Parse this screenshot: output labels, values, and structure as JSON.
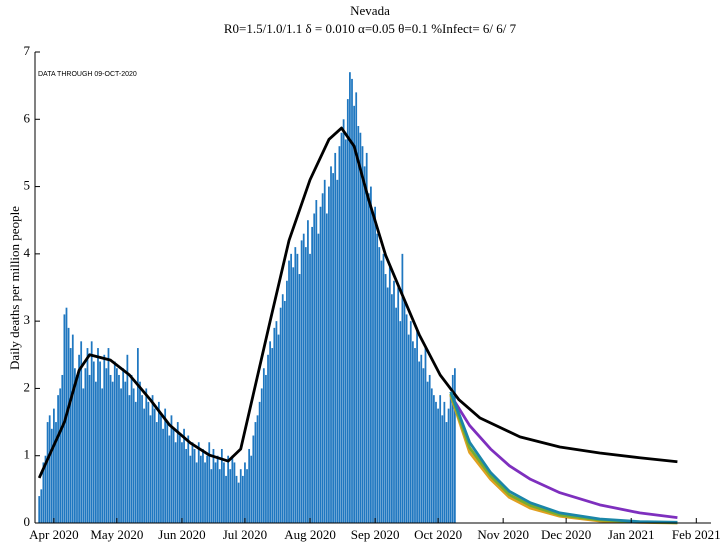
{
  "chart_data": {
    "type": "bar",
    "title": "Nevada",
    "subtitle": "R0=1.5/1.0/1.1  δ = 0.010  α=0.05  θ=0.1  %Infect= 6/ 6/ 7",
    "annotation": "DATA THROUGH 09-OCT-2020",
    "ylabel": "Daily deaths per million people",
    "color": "#1f77c0",
    "x": [
      -7,
      -6,
      -5,
      -4,
      -3,
      -2,
      -1,
      0,
      1,
      2,
      3,
      4,
      5,
      6,
      7,
      8,
      9,
      10,
      11,
      12,
      13,
      14,
      15,
      16,
      17,
      18,
      19,
      20,
      21,
      22,
      23,
      24,
      25,
      26,
      27,
      28,
      29,
      30,
      31,
      32,
      33,
      34,
      35,
      36,
      37,
      38,
      39,
      40,
      41,
      42,
      43,
      44,
      45,
      46,
      47,
      48,
      49,
      50,
      51,
      52,
      53,
      54,
      55,
      56,
      57,
      58,
      59,
      60,
      61,
      62,
      63,
      64,
      65,
      66,
      67,
      68,
      69,
      70,
      71,
      72,
      73,
      74,
      75,
      76,
      77,
      78,
      79,
      80,
      81,
      82,
      83,
      84,
      85,
      86,
      87,
      88,
      89,
      90,
      91,
      92,
      93,
      94,
      95,
      96,
      97,
      98,
      99,
      100,
      101,
      102,
      103,
      104,
      105,
      106,
      107,
      108,
      109,
      110,
      111,
      112,
      113,
      114,
      115,
      116,
      117,
      118,
      119,
      120,
      121,
      122,
      123,
      124,
      125,
      126,
      127,
      128,
      129,
      130,
      131,
      132,
      133,
      134,
      135,
      136,
      137,
      138,
      139,
      140,
      141,
      142,
      143,
      144,
      145,
      146,
      147,
      148,
      149,
      150,
      151,
      152,
      153,
      154,
      155,
      156,
      157,
      158,
      159,
      160,
      161,
      162,
      163,
      164,
      165,
      166,
      167,
      168,
      169,
      170,
      171,
      172,
      173,
      174,
      175,
      176,
      177,
      178,
      179,
      180,
      181,
      182,
      183,
      184,
      185,
      186,
      187,
      188,
      189,
      190,
      191
    ],
    "values": [
      0.4,
      0.5,
      0.9,
      1.0,
      1.5,
      1.6,
      1.4,
      1.7,
      1.5,
      1.9,
      2.0,
      2.2,
      3.1,
      3.2,
      2.9,
      2.6,
      2.8,
      2.3,
      2.2,
      2.5,
      2.7,
      2.0,
      2.3,
      2.6,
      2.2,
      2.7,
      2.4,
      2.1,
      2.6,
      2.4,
      2.0,
      2.5,
      2.3,
      2.6,
      2.2,
      2.1,
      2.4,
      2.3,
      2.2,
      2.0,
      2.3,
      2.1,
      2.5,
      1.9,
      2.2,
      2.0,
      1.8,
      2.6,
      2.1,
      1.9,
      1.7,
      2.0,
      1.8,
      1.6,
      1.9,
      1.7,
      1.5,
      1.8,
      1.6,
      1.4,
      1.7,
      1.5,
      1.3,
      1.6,
      1.4,
      1.2,
      1.5,
      1.3,
      1.2,
      1.4,
      1.1,
      1.3,
      1.0,
      1.2,
      1.1,
      0.9,
      1.2,
      1.0,
      1.1,
      0.9,
      1.0,
      1.2,
      0.8,
      1.1,
      0.9,
      1.0,
      0.8,
      1.1,
      0.9,
      0.7,
      1.0,
      0.8,
      1.0,
      0.9,
      0.7,
      0.6,
      0.8,
      0.7,
      0.9,
      0.8,
      1.1,
      1.0,
      1.3,
      1.5,
      1.6,
      1.8,
      2.0,
      2.3,
      2.2,
      2.5,
      2.7,
      2.6,
      2.9,
      3.0,
      2.8,
      3.2,
      3.4,
      3.3,
      3.6,
      3.9,
      4.0,
      3.8,
      4.1,
      4.0,
      3.7,
      4.2,
      4.3,
      4.1,
      4.5,
      4.0,
      4.4,
      4.6,
      4.8,
      4.3,
      4.7,
      4.9,
      5.1,
      4.6,
      5.0,
      5.3,
      5.2,
      5.5,
      5.1,
      5.6,
      5.8,
      6.0,
      5.7,
      6.3,
      6.7,
      6.6,
      6.2,
      6.4,
      5.9,
      5.8,
      5.6,
      5.3,
      5.5,
      4.9,
      5.0,
      4.6,
      4.7,
      4.3,
      4.1,
      3.9,
      4.0,
      3.7,
      3.5,
      3.8,
      3.4,
      3.6,
      3.2,
      3.5,
      3.0,
      4.0,
      3.3,
      3.1,
      2.8,
      3.0,
      2.7,
      2.6,
      2.9,
      2.4,
      2.5,
      2.3,
      2.6,
      2.1,
      2.2,
      2.0,
      1.9,
      1.8,
      1.7,
      1.9,
      1.6,
      1.8,
      1.5,
      1.7,
      1.9,
      2.2,
      2.3
    ],
    "lines": [
      {
        "color": "#000000",
        "x": [
          -7,
          5,
          12,
          17,
          27,
          36,
          46,
          55,
          65,
          74,
          83,
          89,
          96,
          103,
          112,
          122,
          131,
          137,
          143,
          150,
          158,
          165,
          174,
          184,
          193,
          203,
          222,
          241,
          260,
          279,
          297
        ],
        "values": [
          0.67,
          1.5,
          2.27,
          2.5,
          2.42,
          2.2,
          1.83,
          1.46,
          1.19,
          1.01,
          0.92,
          1.1,
          2.05,
          3.0,
          4.2,
          5.1,
          5.7,
          5.87,
          5.6,
          4.8,
          3.98,
          3.46,
          2.8,
          2.2,
          1.83,
          1.56,
          1.28,
          1.13,
          1.04,
          0.97,
          0.91
        ]
      },
      {
        "color": "#7e2fbe",
        "x": [
          189,
          198,
          208,
          217,
          227,
          241,
          260,
          279,
          297
        ],
        "values": [
          1.9,
          1.45,
          1.1,
          0.85,
          0.65,
          0.45,
          0.27,
          0.15,
          0.08
        ]
      },
      {
        "color": "#e0a020",
        "x": [
          189,
          198,
          208,
          217,
          227,
          241,
          260,
          279,
          297
        ],
        "values": [
          1.9,
          1.05,
          0.65,
          0.38,
          0.22,
          0.1,
          0.03,
          0.01,
          0.0
        ]
      },
      {
        "color": "#77ac30",
        "x": [
          189,
          198,
          208,
          217,
          227,
          241,
          260,
          279,
          297
        ],
        "values": [
          1.92,
          1.12,
          0.7,
          0.42,
          0.26,
          0.12,
          0.045,
          0.015,
          0.005
        ]
      },
      {
        "color": "#1a86a8",
        "x": [
          189,
          198,
          208,
          217,
          227,
          241,
          260,
          279,
          297
        ],
        "values": [
          1.95,
          1.2,
          0.75,
          0.47,
          0.3,
          0.15,
          0.06,
          0.02,
          0.01
        ]
      }
    ],
    "xlim": [
      -9,
      313
    ],
    "xticks": [
      {
        "value": 0,
        "label": "Apr 2020"
      },
      {
        "value": 30,
        "label": "May 2020"
      },
      {
        "value": 61,
        "label": "Jun 2020"
      },
      {
        "value": 91,
        "label": "Jul 2020"
      },
      {
        "value": 122,
        "label": "Aug 2020"
      },
      {
        "value": 153,
        "label": "Sep 2020"
      },
      {
        "value": 183,
        "label": "Oct 2020"
      },
      {
        "value": 214,
        "label": "Nov 2020"
      },
      {
        "value": 244,
        "label": "Dec 2020"
      },
      {
        "value": 275,
        "label": "Jan 2021"
      },
      {
        "value": 306,
        "label": "Feb 2021"
      }
    ],
    "ylim": [
      0,
      7
    ],
    "yticks": [
      0,
      1,
      2,
      3,
      4,
      5,
      6,
      7
    ]
  }
}
